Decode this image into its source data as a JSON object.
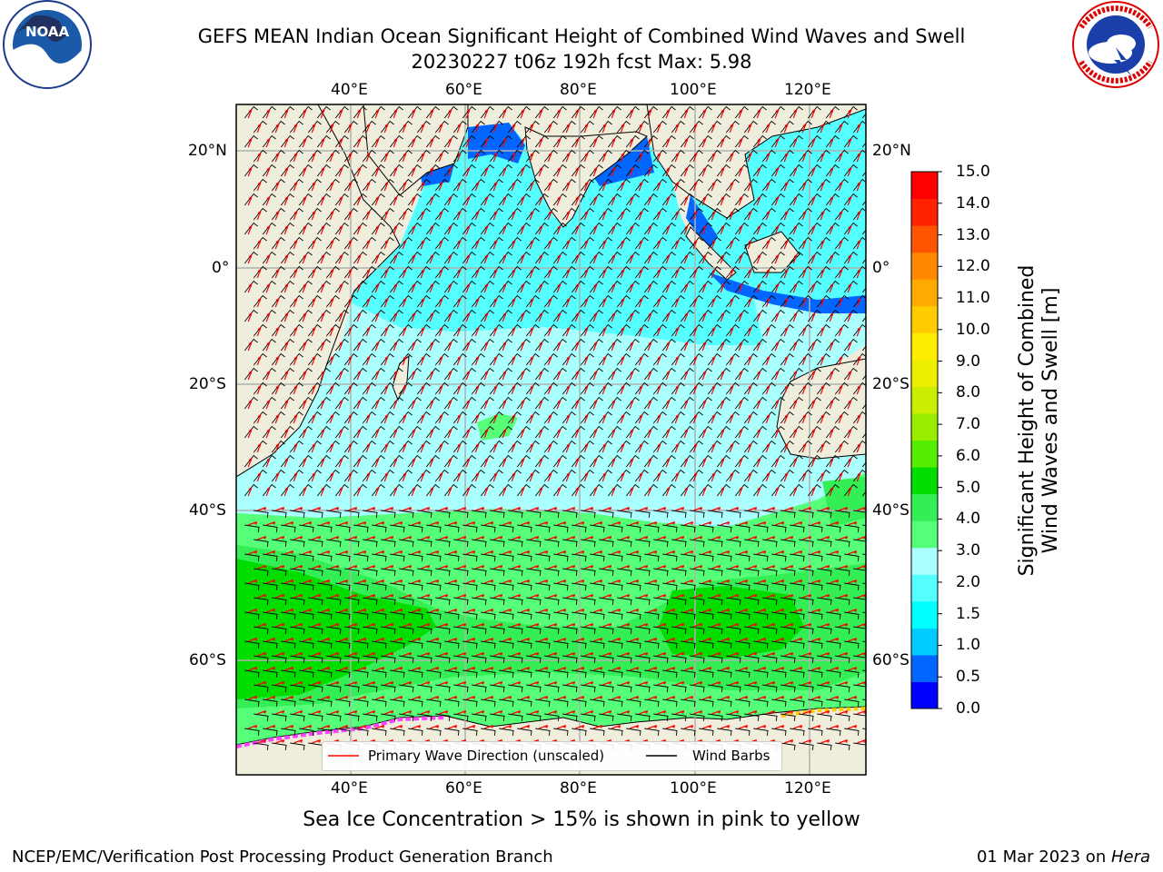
{
  "header": {
    "title_line1": "GEFS MEAN Indian Ocean Significant Height of Combined Wind Waves and Swell",
    "title_line2": "20230227 t06z 192h fcst   Max: 5.98"
  },
  "logos": {
    "left": "noaa-logo",
    "left_text": "NOAA",
    "right": "nws-logo",
    "right_text": "NATIONAL WEATHER SERVICE"
  },
  "map": {
    "lon_ticks": [
      "40°E",
      "60°E",
      "80°E",
      "100°E",
      "120°E"
    ],
    "lat_ticks_left": [
      "20°N",
      "0°",
      "20°S",
      "40°S",
      "60°S"
    ],
    "lat_ticks_right": [
      "20°N",
      "0°",
      "20°S",
      "40°S",
      "60°S"
    ],
    "land_color": "#efeedc",
    "grid": true
  },
  "legend": {
    "wave_label": "Primary Wave Direction (unscaled)",
    "wind_label": "Wind Barbs",
    "wave_color": "#ff0000",
    "wind_color": "#000000"
  },
  "colorbar": {
    "title_line1": "Significant Height of Combined",
    "title_line2": "Wind Waves and Swell [m]",
    "ticks": [
      "15.0",
      "14.0",
      "13.0",
      "12.0",
      "11.0",
      "10.0",
      "9.0",
      "8.0",
      "7.0",
      "6.0",
      "5.0",
      "4.0",
      "3.0",
      "2.0",
      "1.5",
      "1.0",
      "0.5",
      "0.0"
    ],
    "colors": [
      "#0000ff",
      "#0066ff",
      "#00ccff",
      "#00ffff",
      "#55ffff",
      "#aaffff",
      "#55ff77",
      "#33ee55",
      "#00dd00",
      "#55ee00",
      "#99ee00",
      "#ccee00",
      "#eeee00",
      "#ffee00",
      "#ffcc00",
      "#ffaa00",
      "#ff8800",
      "#ff5500",
      "#ff2200",
      "#ff0000"
    ]
  },
  "notes": {
    "sea_ice": "Sea Ice Concentration > 15% is shown in pink to yellow"
  },
  "footer": {
    "left": "NCEP/EMC/Verification Post Processing Product Generation Branch",
    "right_prefix": "01 Mar 2023 on ",
    "right_host": "Hera"
  }
}
